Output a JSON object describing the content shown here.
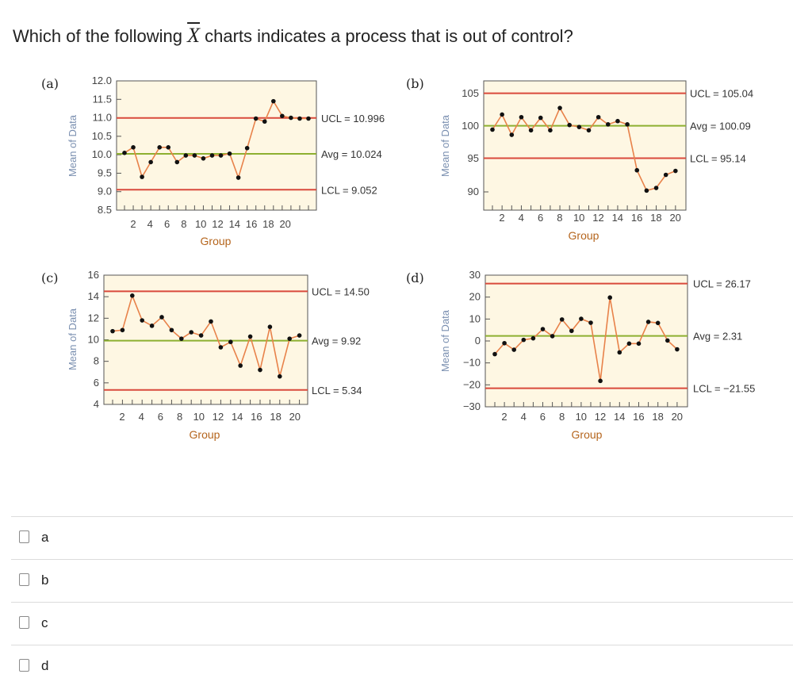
{
  "question": {
    "prefix": "Which of the following ",
    "symbol": "X",
    "suffix": " charts indicates a process that is out of control?"
  },
  "charts": [
    {
      "tag": "(a)",
      "ylabel": "Mean of Data",
      "xlabel": "Group",
      "yticks": [
        "12.0",
        "11.5",
        "11.0",
        "10.5",
        "10.0",
        "9.5",
        "9.0",
        "8.5"
      ],
      "xticks": [
        "2",
        "4",
        "6",
        "8",
        "10",
        "12",
        "14",
        "16",
        "18",
        "20"
      ],
      "ucl_label": "UCL = 10.996",
      "avg_label": "Avg = 10.024",
      "lcl_label": "LCL = 9.052"
    },
    {
      "tag": "(b)",
      "ylabel": "Mean of Data",
      "xlabel": "Group",
      "yticks": [
        "105",
        "100",
        "95",
        "90"
      ],
      "xticks": [
        "2",
        "4",
        "6",
        "8",
        "10",
        "12",
        "14",
        "16",
        "18",
        "20"
      ],
      "ucl_label": "UCL = 105.04",
      "avg_label": "Avg = 100.09",
      "lcl_label": "LCL = 95.14"
    },
    {
      "tag": "(c)",
      "ylabel": "Mean of Data",
      "xlabel": "Group",
      "yticks": [
        "16",
        "14",
        "12",
        "10",
        "8",
        "6",
        "4"
      ],
      "xticks": [
        "2",
        "4",
        "6",
        "8",
        "10",
        "12",
        "14",
        "16",
        "18",
        "20"
      ],
      "ucl_label": "UCL = 14.50",
      "avg_label": "Avg = 9.92",
      "lcl_label": "LCL = 5.34"
    },
    {
      "tag": "(d)",
      "ylabel": "Mean of Data",
      "xlabel": "Group",
      "yticks": [
        "30",
        "20",
        "10",
        "0",
        "−10",
        "−20",
        "−30"
      ],
      "xticks": [
        "2",
        "4",
        "6",
        "8",
        "10",
        "12",
        "14",
        "16",
        "18",
        "20"
      ],
      "ucl_label": "UCL = 26.17",
      "avg_label": "Avg = 2.31",
      "lcl_label": "LCL = −21.55"
    }
  ],
  "chart_data": [
    {
      "type": "line",
      "title": "(a)",
      "xlabel": "Group",
      "ylabel": "Mean of Data",
      "ylim": [
        8.5,
        12.0
      ],
      "x": [
        1,
        2,
        3,
        4,
        5,
        6,
        7,
        8,
        9,
        10,
        11,
        12,
        13,
        14,
        15,
        16,
        17,
        18,
        19,
        20,
        21,
        22
      ],
      "series": [
        {
          "values": [
            10.05,
            10.2,
            9.4,
            9.8,
            10.2,
            10.2,
            9.8,
            9.98,
            9.98,
            9.9,
            9.98,
            9.98,
            10.03,
            9.38,
            10.18,
            10.98,
            10.9,
            11.45,
            11.05,
            11.0,
            10.98,
            10.98
          ]
        }
      ],
      "control_lines": {
        "ucl": 10.996,
        "avg": 10.024,
        "lcl": 9.052
      },
      "colors": {
        "series": "#e8824a",
        "ucl": "#d94a3c",
        "avg": "#8db030",
        "lcl": "#d94a3c",
        "plot_bg": "#fef7e3"
      }
    },
    {
      "type": "line",
      "title": "(b)",
      "xlabel": "Group",
      "ylabel": "Mean of Data",
      "ylim": [
        88,
        107
      ],
      "x": [
        1,
        2,
        3,
        4,
        5,
        6,
        7,
        8,
        9,
        10,
        11,
        12,
        13,
        14,
        15,
        16,
        17,
        18,
        19,
        20
      ],
      "series": [
        {
          "values": [
            99.5,
            101.8,
            98.7,
            101.4,
            99.4,
            101.3,
            99.4,
            102.8,
            100.2,
            99.9,
            99.4,
            101.4,
            100.3,
            100.8,
            100.3,
            93.3,
            90.2,
            90.6,
            92.6,
            93.2
          ]
        }
      ],
      "control_lines": {
        "ucl": 105.04,
        "avg": 100.09,
        "lcl": 95.14
      },
      "colors": {
        "series": "#e8824a",
        "ucl": "#d94a3c",
        "avg": "#8db030",
        "lcl": "#d94a3c",
        "plot_bg": "#fef7e3"
      }
    },
    {
      "type": "line",
      "title": "(c)",
      "xlabel": "Group",
      "ylabel": "Mean of Data",
      "ylim": [
        4,
        16
      ],
      "x": [
        1,
        2,
        3,
        4,
        5,
        6,
        7,
        8,
        9,
        10,
        11,
        12,
        13,
        14,
        15,
        16,
        17,
        18,
        19,
        20
      ],
      "series": [
        {
          "values": [
            10.8,
            10.9,
            14.1,
            11.8,
            11.3,
            12.1,
            10.9,
            10.1,
            10.7,
            10.4,
            11.7,
            9.3,
            9.8,
            7.6,
            10.3,
            7.2,
            11.2,
            6.6,
            10.1,
            10.4
          ]
        }
      ],
      "control_lines": {
        "ucl": 14.5,
        "avg": 9.92,
        "lcl": 5.34
      },
      "colors": {
        "series": "#e8824a",
        "ucl": "#d94a3c",
        "avg": "#8db030",
        "lcl": "#d94a3c",
        "plot_bg": "#fef7e3"
      }
    },
    {
      "type": "line",
      "title": "(d)",
      "xlabel": "Group",
      "ylabel": "Mean of Data",
      "ylim": [
        -30,
        30
      ],
      "x": [
        1,
        2,
        3,
        4,
        5,
        6,
        7,
        8,
        9,
        10,
        11,
        12,
        13,
        14,
        15,
        16,
        17,
        18,
        19,
        20
      ],
      "series": [
        {
          "values": [
            -6,
            -1,
            -4,
            0.5,
            1.2,
            5.4,
            2.2,
            9.8,
            4.6,
            10.1,
            8.3,
            -18.2,
            19.8,
            -5.2,
            -1.2,
            -1.2,
            8.7,
            8.2,
            0.2,
            -3.8
          ]
        }
      ],
      "control_lines": {
        "ucl": 26.17,
        "avg": 2.31,
        "lcl": -21.55
      },
      "colors": {
        "series": "#e8824a",
        "ucl": "#d94a3c",
        "avg": "#8db030",
        "lcl": "#d94a3c",
        "plot_bg": "#fef7e3"
      }
    }
  ],
  "options": [
    {
      "label": "a"
    },
    {
      "label": "b"
    },
    {
      "label": "c"
    },
    {
      "label": "d"
    }
  ]
}
